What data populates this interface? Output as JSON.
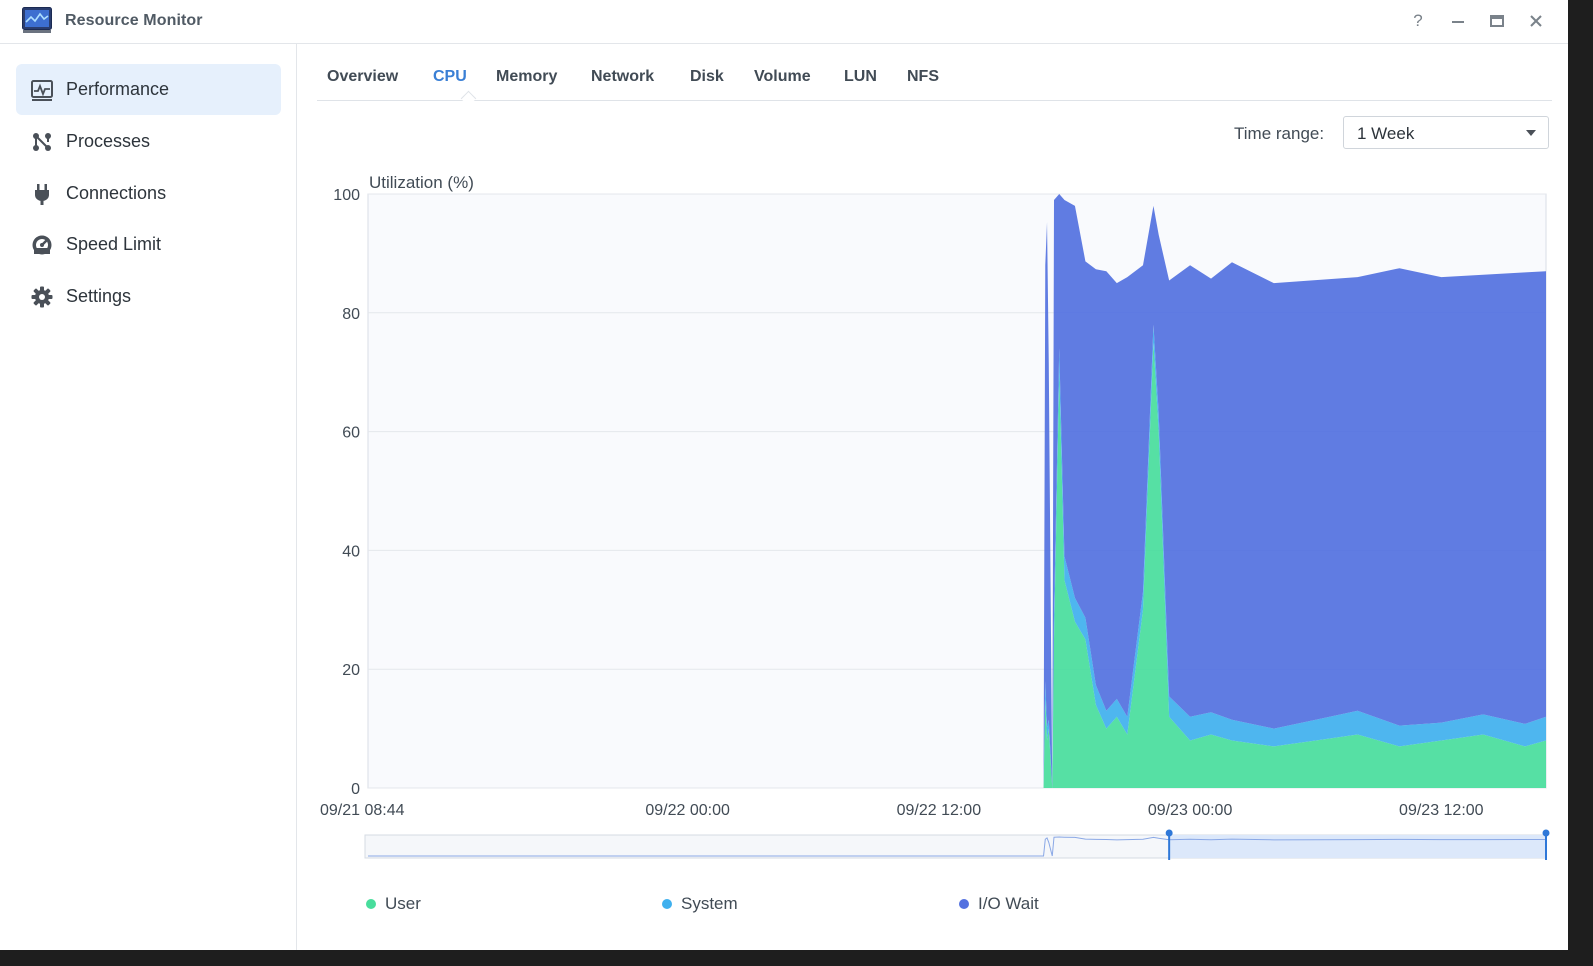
{
  "window": {
    "title": "Resource Monitor",
    "help_label": "?"
  },
  "sidebar": {
    "items": [
      {
        "label": "Performance",
        "icon": "performance-icon",
        "active": true
      },
      {
        "label": "Processes",
        "icon": "processes-icon",
        "active": false
      },
      {
        "label": "Connections",
        "icon": "plug-icon",
        "active": false
      },
      {
        "label": "Speed Limit",
        "icon": "gauge-icon",
        "active": false
      },
      {
        "label": "Settings",
        "icon": "gear-icon",
        "active": false
      }
    ]
  },
  "tabs": [
    "Overview",
    "CPU",
    "Memory",
    "Network",
    "Disk",
    "Volume",
    "LUN",
    "NFS"
  ],
  "active_tab": "CPU",
  "time_range": {
    "label": "Time range:",
    "value": "1 Week"
  },
  "colors": {
    "accent": "#3a7fd5",
    "user": "#48dd9c",
    "system": "#3fb0ee",
    "io_wait": "#5371e0",
    "nav_active_bg": "#e6f0fc"
  },
  "chart_data": {
    "type": "area",
    "stacked": true,
    "ylabel": "Utilization (%)",
    "ylim": [
      0,
      100
    ],
    "yticks": [
      0,
      20,
      40,
      60,
      80,
      100
    ],
    "xticks": [
      "09/21 08:44",
      "09/22 00:00",
      "09/22 12:00",
      "09/23 00:00",
      "09/23 12:00"
    ],
    "x_start": "09/21 08:44",
    "x_end": "09/23 17:00",
    "grid": true,
    "legend_position": "bottom",
    "series": [
      {
        "name": "User",
        "color": "#48dd9c",
        "values": [
          {
            "x": "09/21 08:44",
            "y": 0
          },
          {
            "x": "09/22 17:00",
            "y": 0
          },
          {
            "x": "09/22 17:05",
            "y": 15
          },
          {
            "x": "09/22 17:10",
            "y": 8
          },
          {
            "x": "09/22 17:15",
            "y": 10
          },
          {
            "x": "09/22 17:25",
            "y": 0
          },
          {
            "x": "09/22 17:30",
            "y": 25
          },
          {
            "x": "09/22 17:45",
            "y": 70
          },
          {
            "x": "09/22 18:00",
            "y": 35
          },
          {
            "x": "09/22 18:30",
            "y": 28
          },
          {
            "x": "09/22 19:00",
            "y": 25
          },
          {
            "x": "09/22 19:30",
            "y": 14
          },
          {
            "x": "09/22 20:00",
            "y": 10
          },
          {
            "x": "09/22 20:30",
            "y": 12
          },
          {
            "x": "09/22 21:00",
            "y": 9
          },
          {
            "x": "09/22 21:45",
            "y": 30
          },
          {
            "x": "09/22 22:15",
            "y": 75
          },
          {
            "x": "09/22 22:30",
            "y": 60
          },
          {
            "x": "09/22 23:00",
            "y": 12
          },
          {
            "x": "09/23 00:00",
            "y": 8
          },
          {
            "x": "09/23 01:00",
            "y": 9
          },
          {
            "x": "09/23 02:00",
            "y": 8
          },
          {
            "x": "09/23 04:00",
            "y": 7
          },
          {
            "x": "09/23 06:00",
            "y": 8
          },
          {
            "x": "09/23 08:00",
            "y": 9
          },
          {
            "x": "09/23 10:00",
            "y": 7
          },
          {
            "x": "09/23 12:00",
            "y": 8
          },
          {
            "x": "09/23 14:00",
            "y": 9
          },
          {
            "x": "09/23 16:00",
            "y": 7
          },
          {
            "x": "09/23 17:00",
            "y": 8
          }
        ]
      },
      {
        "name": "System",
        "color": "#3fb0ee",
        "values": [
          {
            "x": "09/21 08:44",
            "y": 0
          },
          {
            "x": "09/22 17:00",
            "y": 0
          },
          {
            "x": "09/22 17:05",
            "y": 3
          },
          {
            "x": "09/22 17:25",
            "y": 0
          },
          {
            "x": "09/22 17:30",
            "y": 4
          },
          {
            "x": "09/22 18:30",
            "y": 4
          },
          {
            "x": "09/22 20:00",
            "y": 3
          },
          {
            "x": "09/22 22:15",
            "y": 3
          },
          {
            "x": "09/23 00:00",
            "y": 4
          },
          {
            "x": "09/23 04:00",
            "y": 3
          },
          {
            "x": "09/23 08:00",
            "y": 4
          },
          {
            "x": "09/23 12:00",
            "y": 3
          },
          {
            "x": "09/23 17:00",
            "y": 4
          }
        ]
      },
      {
        "name": "I/O Wait",
        "color": "#5371e0",
        "values": [
          {
            "x": "09/21 08:44",
            "y": 0
          },
          {
            "x": "09/22 17:00",
            "y": 0
          },
          {
            "x": "09/22 17:05",
            "y": 70
          },
          {
            "x": "09/22 17:10",
            "y": 85
          },
          {
            "x": "09/22 17:15",
            "y": 60
          },
          {
            "x": "09/22 17:25",
            "y": 0
          },
          {
            "x": "09/22 17:30",
            "y": 70
          },
          {
            "x": "09/22 17:45",
            "y": 26
          },
          {
            "x": "09/22 18:00",
            "y": 60
          },
          {
            "x": "09/22 18:30",
            "y": 66
          },
          {
            "x": "09/22 19:00",
            "y": 60
          },
          {
            "x": "09/22 19:30",
            "y": 70
          },
          {
            "x": "09/22 20:00",
            "y": 74
          },
          {
            "x": "09/22 20:30",
            "y": 70
          },
          {
            "x": "09/22 21:00",
            "y": 74
          },
          {
            "x": "09/22 21:45",
            "y": 55
          },
          {
            "x": "09/22 22:15",
            "y": 20
          },
          {
            "x": "09/22 22:30",
            "y": 30
          },
          {
            "x": "09/22 23:00",
            "y": 70
          },
          {
            "x": "09/23 00:00",
            "y": 76
          },
          {
            "x": "09/23 01:00",
            "y": 73
          },
          {
            "x": "09/23 02:00",
            "y": 77
          },
          {
            "x": "09/23 04:00",
            "y": 75
          },
          {
            "x": "09/23 06:00",
            "y": 74
          },
          {
            "x": "09/23 08:00",
            "y": 73
          },
          {
            "x": "09/23 10:00",
            "y": 77
          },
          {
            "x": "09/23 12:00",
            "y": 75
          },
          {
            "x": "09/23 14:00",
            "y": 74
          },
          {
            "x": "09/23 16:00",
            "y": 76
          },
          {
            "x": "09/23 17:00",
            "y": 75
          }
        ]
      }
    ]
  },
  "navigator": {
    "window_start": "09/22 23:00",
    "window_end": "09/23 17:00"
  },
  "legend": [
    "User",
    "System",
    "I/O Wait"
  ]
}
